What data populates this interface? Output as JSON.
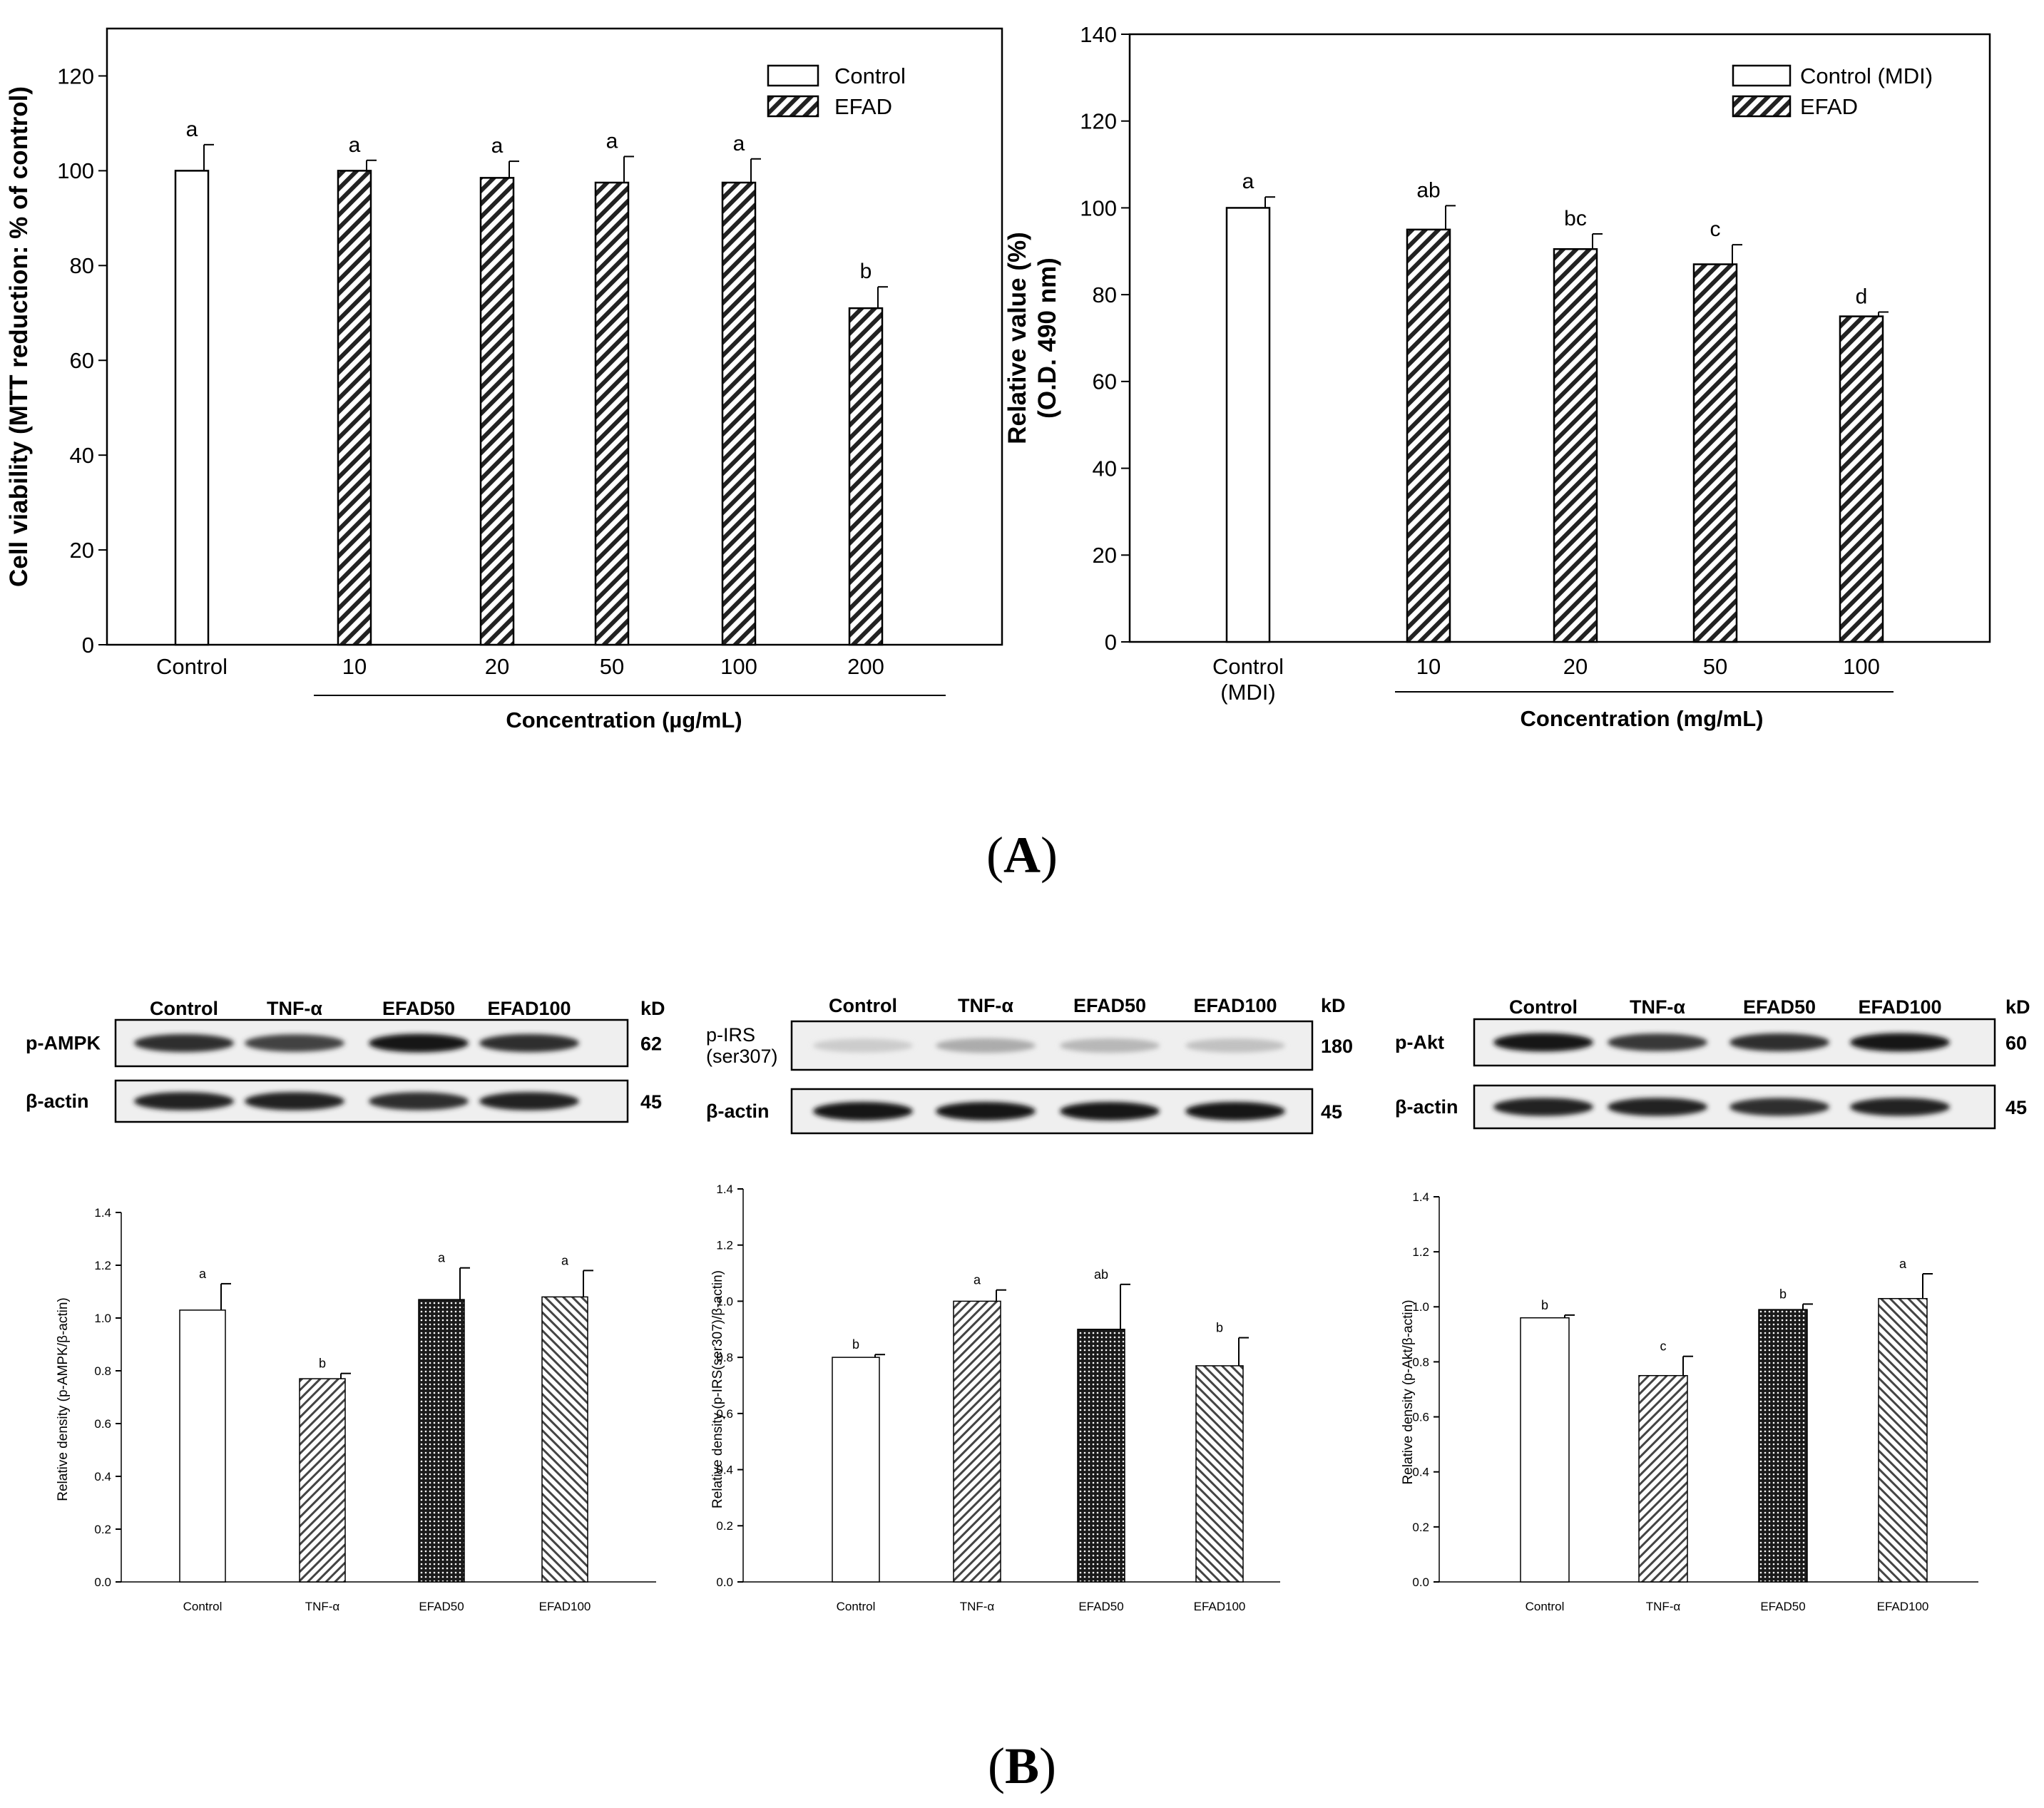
{
  "figure": {
    "panel_a_label": {
      "open": "(",
      "letter": "A",
      "close": ")"
    },
    "panel_b_label": {
      "open": "(",
      "letter": "B",
      "close": ")"
    }
  },
  "colors": {
    "ink": "#000000",
    "bar_fill": "#ffffff",
    "band": "#222222",
    "blot_bg": "#efefef"
  },
  "chart_data": [
    {
      "id": "A1",
      "type": "bar",
      "title": "",
      "ylabel": "Cell viability (MTT reduction: % of control)",
      "xlabel": "Concentration (µg/mL)",
      "ylim": [
        0,
        130
      ],
      "yticks": [
        0,
        20,
        40,
        60,
        80,
        100,
        120
      ],
      "categories": [
        "Control",
        "10",
        "20",
        "50",
        "100",
        "200"
      ],
      "values": [
        100,
        100,
        98.5,
        97.5,
        97.5,
        71
      ],
      "errors": [
        5.5,
        2.2,
        3.5,
        5.5,
        5,
        4.5
      ],
      "significance": [
        "a",
        "a",
        "a",
        "a",
        "a",
        "b"
      ],
      "patterns": [
        "none",
        "hatch",
        "hatch",
        "hatch",
        "hatch",
        "hatch"
      ],
      "legend": [
        {
          "label": "Control",
          "pattern": "none"
        },
        {
          "label": "EFAD",
          "pattern": "hatch"
        }
      ],
      "legend_position": "top-right"
    },
    {
      "id": "A2",
      "type": "bar",
      "title": "",
      "ylabel": [
        "Relative value (%)",
        "(O.D. 490 nm)"
      ],
      "xlabel": "Concentration (mg/mL)",
      "ylim": [
        0,
        140
      ],
      "yticks": [
        0,
        20,
        40,
        60,
        80,
        100,
        120,
        140
      ],
      "categories": [
        [
          "Control",
          "(MDI)"
        ],
        "10",
        "20",
        "50",
        "100"
      ],
      "values": [
        100,
        95,
        90.5,
        87,
        75
      ],
      "errors": [
        2.5,
        5.5,
        3.5,
        4.5,
        1
      ],
      "significance": [
        "a",
        "ab",
        "bc",
        "c",
        "d"
      ],
      "patterns": [
        "none",
        "hatch",
        "hatch",
        "hatch",
        "hatch"
      ],
      "legend": [
        {
          "label": "Control (MDI)",
          "pattern": "none"
        },
        {
          "label": "EFAD",
          "pattern": "hatch"
        }
      ],
      "legend_position": "top-right"
    },
    {
      "id": "B1",
      "type": "bar",
      "title": "",
      "ylabel": "Relative density (p-AMPK/β-actin)",
      "xlabel": "",
      "ylim": [
        0,
        1.4
      ],
      "yticks": [
        "0.0",
        "0.2",
        "0.4",
        "0.6",
        "0.8",
        "1.0",
        "1.2",
        "1.4"
      ],
      "categories": [
        "Control",
        "TNF-α",
        "EFAD50",
        "EFAD100"
      ],
      "values": [
        1.03,
        0.77,
        1.07,
        1.08
      ],
      "errors": [
        0.1,
        0.02,
        0.12,
        0.1
      ],
      "significance": [
        "a",
        "b",
        "a",
        "a"
      ],
      "patterns": [
        "none",
        "diag",
        "dots",
        "back"
      ]
    },
    {
      "id": "B2",
      "type": "bar",
      "title": "",
      "ylabel": "Relative density (p-IRS(ser307)/β-actin)",
      "xlabel": "",
      "ylim": [
        0,
        1.4
      ],
      "yticks": [
        "0.0",
        "0.2",
        "0.4",
        "0.6",
        "0.8",
        "1.0",
        "1.2",
        "1.4"
      ],
      "categories": [
        "Control",
        "TNF-α",
        "EFAD50",
        "EFAD100"
      ],
      "values": [
        0.8,
        1.0,
        0.9,
        0.77
      ],
      "errors": [
        0.01,
        0.04,
        0.16,
        0.1
      ],
      "significance": [
        "b",
        "a",
        "ab",
        "b"
      ],
      "patterns": [
        "none",
        "diag",
        "dots",
        "back"
      ]
    },
    {
      "id": "B3",
      "type": "bar",
      "title": "",
      "ylabel": "Relative density (p-Akt/β-actin)",
      "xlabel": "",
      "ylim": [
        0,
        1.4
      ],
      "yticks": [
        "0.0",
        "0.2",
        "0.4",
        "0.6",
        "0.8",
        "1.0",
        "1.2",
        "1.4"
      ],
      "categories": [
        "Control",
        "TNF-α",
        "EFAD50",
        "EFAD100"
      ],
      "values": [
        0.96,
        0.75,
        0.99,
        1.03
      ],
      "errors": [
        0.01,
        0.07,
        0.02,
        0.09
      ],
      "significance": [
        "b",
        "c",
        "b",
        "a"
      ],
      "patterns": [
        "none",
        "diag",
        "dots",
        "back"
      ]
    }
  ],
  "blots": [
    {
      "id": "W1",
      "lane_labels": [
        "Control",
        "TNF-α",
        "EFAD50",
        "EFAD100"
      ],
      "kd_header": "kD",
      "rows": [
        {
          "label": "p-AMPK",
          "kd": "62",
          "intensity": [
            0.9,
            0.8,
            1.0,
            0.9
          ]
        },
        {
          "label": "β-actin",
          "kd": "45",
          "intensity": [
            0.95,
            0.95,
            0.9,
            0.95
          ]
        }
      ]
    },
    {
      "id": "W2",
      "lane_labels": [
        "Control",
        "TNF-α",
        "EFAD50",
        "EFAD100"
      ],
      "kd_header": "kD",
      "rows": [
        {
          "label": [
            "p-IRS",
            "(ser307)"
          ],
          "kd": "180",
          "intensity": [
            0.15,
            0.3,
            0.25,
            0.2
          ]
        },
        {
          "label": "β-actin",
          "kd": "45",
          "intensity": [
            1.0,
            1.0,
            1.0,
            1.0
          ]
        }
      ]
    },
    {
      "id": "W3",
      "lane_labels": [
        "Control",
        "TNF-α",
        "EFAD50",
        "EFAD100"
      ],
      "kd_header": "kD",
      "rows": [
        {
          "label": "p-Akt",
          "kd": "60",
          "intensity": [
            1.0,
            0.85,
            0.9,
            1.0
          ]
        },
        {
          "label": "β-actin",
          "kd": "45",
          "intensity": [
            0.95,
            0.95,
            0.9,
            0.95
          ]
        }
      ]
    }
  ]
}
